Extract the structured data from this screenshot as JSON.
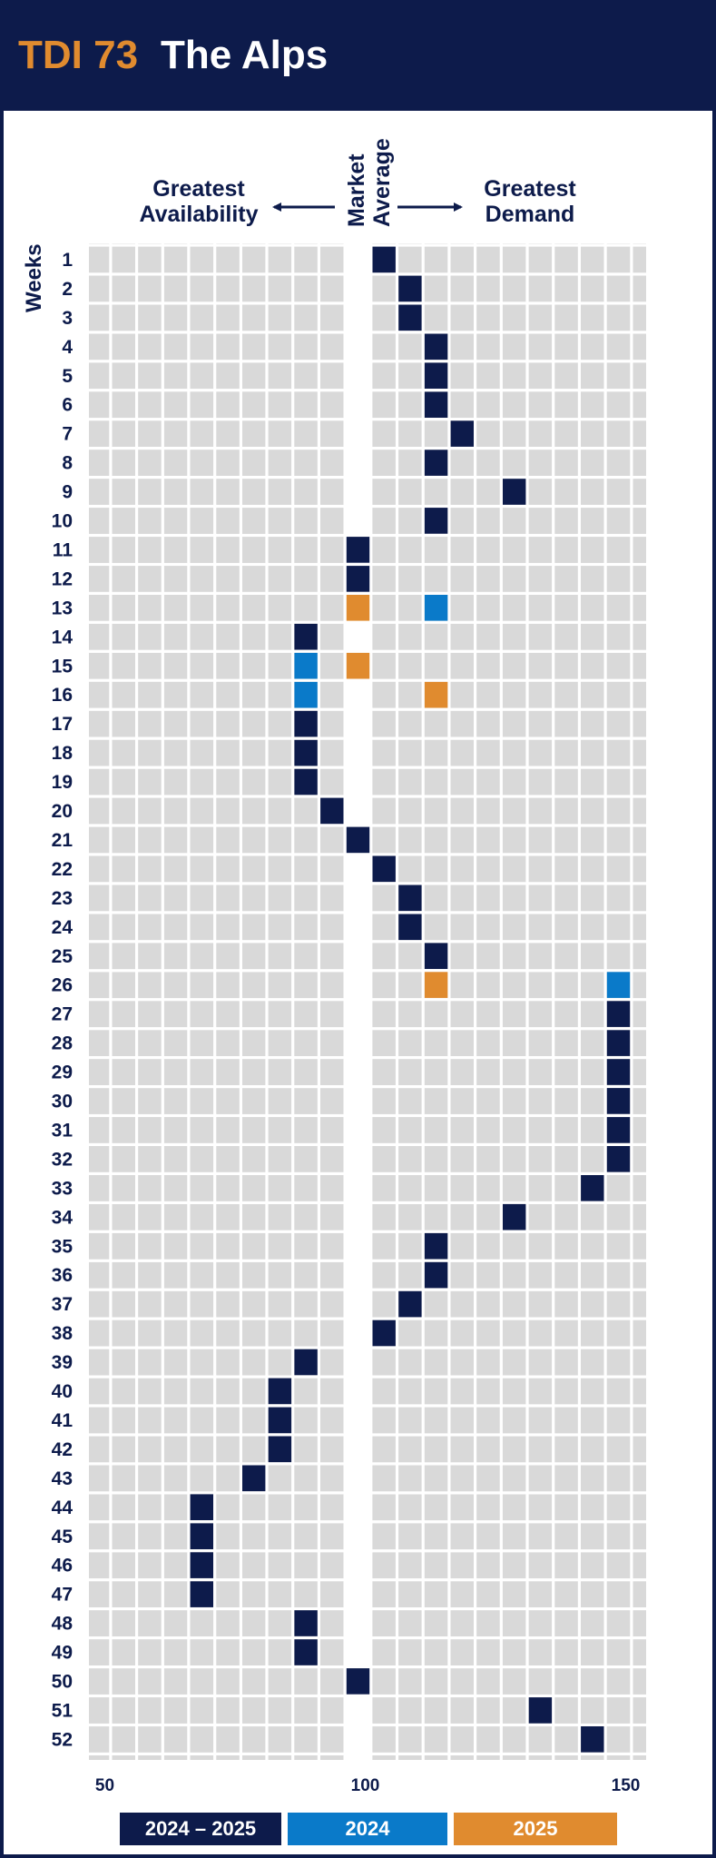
{
  "header": {
    "code": "TDI 73",
    "name": "The Alps"
  },
  "labels": {
    "availability_line1": "Greatest",
    "availability_line2": "Availability",
    "market_line1": "Market",
    "market_line2": "Average",
    "demand_line1": "Greatest",
    "demand_line2": "Demand",
    "weeks": "Weeks"
  },
  "colors": {
    "navy": "#0d1b4b",
    "blue": "#0a7ac9",
    "orange": "#e08b2f",
    "cell": "#d9d9d9"
  },
  "chart_data": {
    "type": "heatmap",
    "ylabel": "Weeks",
    "x_axis": {
      "min": 50,
      "max": 150,
      "ticks": [
        50,
        100,
        150
      ]
    },
    "series": [
      {
        "name": "2024 – 2025",
        "color": "#0d1b4b",
        "points": [
          {
            "week": 1,
            "value": 105
          },
          {
            "week": 2,
            "value": 110
          },
          {
            "week": 3,
            "value": 110
          },
          {
            "week": 4,
            "value": 115
          },
          {
            "week": 5,
            "value": 115
          },
          {
            "week": 6,
            "value": 115
          },
          {
            "week": 7,
            "value": 120
          },
          {
            "week": 8,
            "value": 115
          },
          {
            "week": 9,
            "value": 130
          },
          {
            "week": 10,
            "value": 115
          },
          {
            "week": 11,
            "value": 100
          },
          {
            "week": 12,
            "value": 100
          },
          {
            "week": 14,
            "value": 90
          },
          {
            "week": 17,
            "value": 90
          },
          {
            "week": 18,
            "value": 90
          },
          {
            "week": 19,
            "value": 90
          },
          {
            "week": 20,
            "value": 95
          },
          {
            "week": 21,
            "value": 100
          },
          {
            "week": 22,
            "value": 105
          },
          {
            "week": 23,
            "value": 110
          },
          {
            "week": 24,
            "value": 110
          },
          {
            "week": 25,
            "value": 115
          },
          {
            "week": 27,
            "value": 150
          },
          {
            "week": 28,
            "value": 150
          },
          {
            "week": 29,
            "value": 150
          },
          {
            "week": 30,
            "value": 150
          },
          {
            "week": 31,
            "value": 150
          },
          {
            "week": 32,
            "value": 150
          },
          {
            "week": 33,
            "value": 145
          },
          {
            "week": 34,
            "value": 130
          },
          {
            "week": 35,
            "value": 115
          },
          {
            "week": 36,
            "value": 115
          },
          {
            "week": 37,
            "value": 110
          },
          {
            "week": 38,
            "value": 105
          },
          {
            "week": 39,
            "value": 90
          },
          {
            "week": 40,
            "value": 85
          },
          {
            "week": 41,
            "value": 85
          },
          {
            "week": 42,
            "value": 85
          },
          {
            "week": 43,
            "value": 80
          },
          {
            "week": 44,
            "value": 70
          },
          {
            "week": 45,
            "value": 70
          },
          {
            "week": 46,
            "value": 70
          },
          {
            "week": 47,
            "value": 70
          },
          {
            "week": 48,
            "value": 90
          },
          {
            "week": 49,
            "value": 90
          },
          {
            "week": 50,
            "value": 100
          },
          {
            "week": 51,
            "value": 135
          },
          {
            "week": 52,
            "value": 145
          }
        ]
      },
      {
        "name": "2024",
        "color": "#0a7ac9",
        "points": [
          {
            "week": 13,
            "value": 115
          },
          {
            "week": 15,
            "value": 90
          },
          {
            "week": 16,
            "value": 90
          },
          {
            "week": 26,
            "value": 150
          }
        ]
      },
      {
        "name": "2025",
        "color": "#e08b2f",
        "points": [
          {
            "week": 13,
            "value": 100
          },
          {
            "week": 15,
            "value": 100
          },
          {
            "week": 16,
            "value": 115
          },
          {
            "week": 26,
            "value": 115
          }
        ]
      }
    ]
  }
}
